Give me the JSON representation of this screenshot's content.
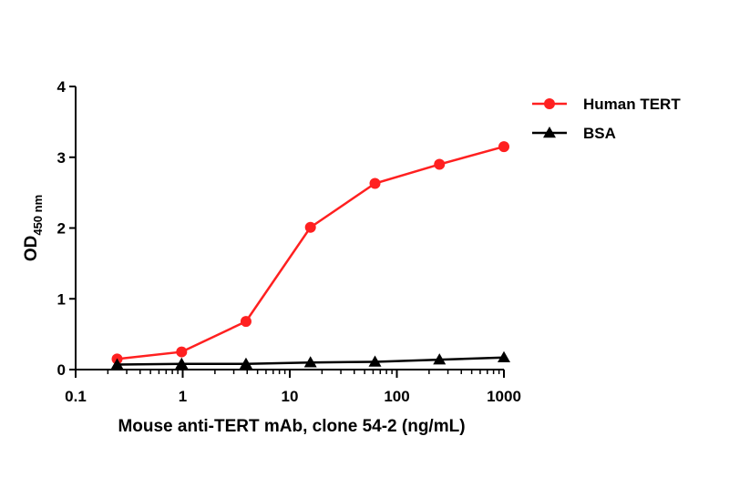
{
  "chart_data": {
    "type": "line",
    "xlabel": "Mouse anti-TERT mAb, clone 54-2 (ng/mL)",
    "ylabel": "OD",
    "ylabel_subscript": "450 nm",
    "x_scale": "log",
    "xlim": [
      0.1,
      1000
    ],
    "ylim": [
      0,
      4
    ],
    "x_ticks": [
      0.1,
      1,
      10,
      100,
      1000
    ],
    "x_tick_labels": [
      "0.1",
      "1",
      "10",
      "100",
      "1000"
    ],
    "y_ticks": [
      0,
      1,
      2,
      3,
      4
    ],
    "y_tick_labels": [
      "0",
      "1",
      "2",
      "3",
      "4"
    ],
    "legend_position": "top-right",
    "grid": false,
    "series": [
      {
        "name": "Human TERT",
        "color": "#ff2020",
        "marker": "circle",
        "x": [
          0.244,
          0.977,
          3.9,
          15.6,
          62.5,
          250,
          1000
        ],
        "y": [
          0.15,
          0.25,
          0.68,
          2.01,
          2.63,
          2.9,
          3.15
        ]
      },
      {
        "name": "BSA",
        "color": "#000000",
        "marker": "triangle",
        "x": [
          0.244,
          0.977,
          3.9,
          15.6,
          62.5,
          250,
          1000
        ],
        "y": [
          0.07,
          0.08,
          0.08,
          0.1,
          0.11,
          0.14,
          0.17
        ]
      }
    ]
  }
}
